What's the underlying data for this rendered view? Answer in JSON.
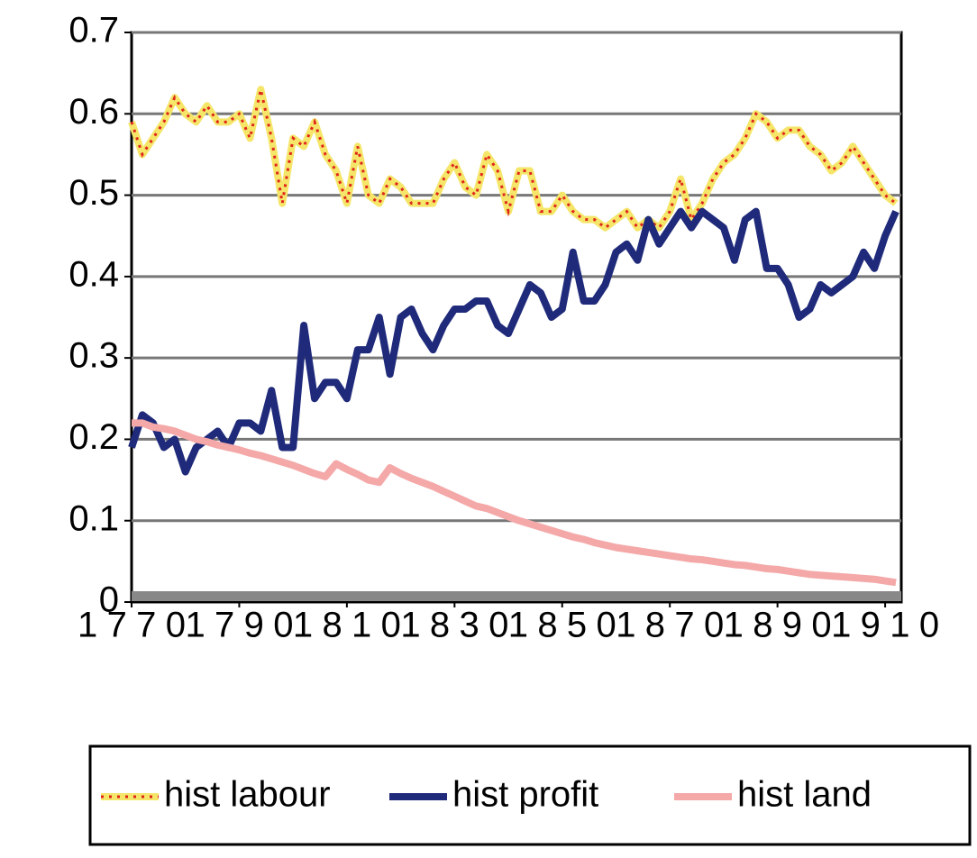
{
  "chart_data": {
    "type": "line",
    "x": [
      1770,
      1772,
      1774,
      1776,
      1778,
      1780,
      1782,
      1784,
      1786,
      1788,
      1790,
      1792,
      1794,
      1796,
      1798,
      1800,
      1802,
      1804,
      1806,
      1808,
      1810,
      1812,
      1814,
      1816,
      1818,
      1820,
      1822,
      1824,
      1826,
      1828,
      1830,
      1832,
      1834,
      1836,
      1838,
      1840,
      1842,
      1844,
      1846,
      1848,
      1850,
      1852,
      1854,
      1856,
      1858,
      1860,
      1862,
      1864,
      1866,
      1868,
      1870,
      1872,
      1874,
      1876,
      1878,
      1880,
      1882,
      1884,
      1886,
      1888,
      1890,
      1892,
      1894,
      1896,
      1898,
      1900,
      1902,
      1904,
      1906,
      1908,
      1910,
      1912
    ],
    "series": [
      {
        "name": "hist labour",
        "color": "#f5e66a",
        "dot_color": "#e0261b",
        "values": [
          0.59,
          0.55,
          0.57,
          0.59,
          0.62,
          0.6,
          0.59,
          0.61,
          0.59,
          0.59,
          0.6,
          0.57,
          0.63,
          0.57,
          0.49,
          0.57,
          0.56,
          0.59,
          0.55,
          0.53,
          0.49,
          0.56,
          0.5,
          0.49,
          0.52,
          0.51,
          0.49,
          0.49,
          0.49,
          0.52,
          0.54,
          0.51,
          0.5,
          0.55,
          0.53,
          0.48,
          0.53,
          0.53,
          0.48,
          0.48,
          0.5,
          0.48,
          0.47,
          0.47,
          0.46,
          0.47,
          0.48,
          0.46,
          0.47,
          0.46,
          0.48,
          0.52,
          0.47,
          0.49,
          0.52,
          0.54,
          0.55,
          0.57,
          0.6,
          0.59,
          0.57,
          0.58,
          0.58,
          0.56,
          0.55,
          0.53,
          0.54,
          0.56,
          0.54,
          0.52,
          0.5,
          0.49
        ]
      },
      {
        "name": "hist profit",
        "color": "#1f2a7a",
        "values": [
          0.19,
          0.23,
          0.22,
          0.19,
          0.2,
          0.16,
          0.19,
          0.2,
          0.21,
          0.19,
          0.22,
          0.22,
          0.21,
          0.26,
          0.19,
          0.19,
          0.34,
          0.25,
          0.27,
          0.27,
          0.25,
          0.31,
          0.31,
          0.35,
          0.28,
          0.35,
          0.36,
          0.33,
          0.31,
          0.34,
          0.36,
          0.36,
          0.37,
          0.37,
          0.34,
          0.33,
          0.36,
          0.39,
          0.38,
          0.35,
          0.36,
          0.43,
          0.37,
          0.37,
          0.39,
          0.43,
          0.44,
          0.42,
          0.47,
          0.44,
          0.46,
          0.48,
          0.46,
          0.48,
          0.47,
          0.46,
          0.42,
          0.47,
          0.48,
          0.41,
          0.41,
          0.39,
          0.35,
          0.36,
          0.39,
          0.38,
          0.39,
          0.4,
          0.43,
          0.41,
          0.45,
          0.48
        ]
      },
      {
        "name": "hist land",
        "color": "#f4a8a8",
        "values": [
          0.22,
          0.22,
          0.215,
          0.213,
          0.21,
          0.205,
          0.2,
          0.197,
          0.193,
          0.19,
          0.187,
          0.183,
          0.18,
          0.176,
          0.172,
          0.168,
          0.163,
          0.158,
          0.154,
          0.17,
          0.163,
          0.157,
          0.15,
          0.147,
          0.165,
          0.158,
          0.152,
          0.147,
          0.142,
          0.136,
          0.13,
          0.124,
          0.118,
          0.115,
          0.11,
          0.105,
          0.1,
          0.096,
          0.092,
          0.088,
          0.084,
          0.08,
          0.077,
          0.073,
          0.07,
          0.067,
          0.065,
          0.063,
          0.061,
          0.059,
          0.057,
          0.055,
          0.053,
          0.052,
          0.05,
          0.048,
          0.046,
          0.045,
          0.043,
          0.041,
          0.04,
          0.038,
          0.036,
          0.034,
          0.033,
          0.032,
          0.031,
          0.03,
          0.029,
          0.028,
          0.026,
          0.024
        ]
      }
    ],
    "xlim": [
      1770,
      1913
    ],
    "xticks": [
      1770,
      1790,
      1810,
      1830,
      1850,
      1870,
      1890,
      1910
    ],
    "ylim": [
      0,
      0.7
    ],
    "yticks": [
      0,
      0.1,
      0.2,
      0.3,
      0.4,
      0.5,
      0.6,
      0.7
    ],
    "grid": true,
    "legend": "bottom"
  }
}
